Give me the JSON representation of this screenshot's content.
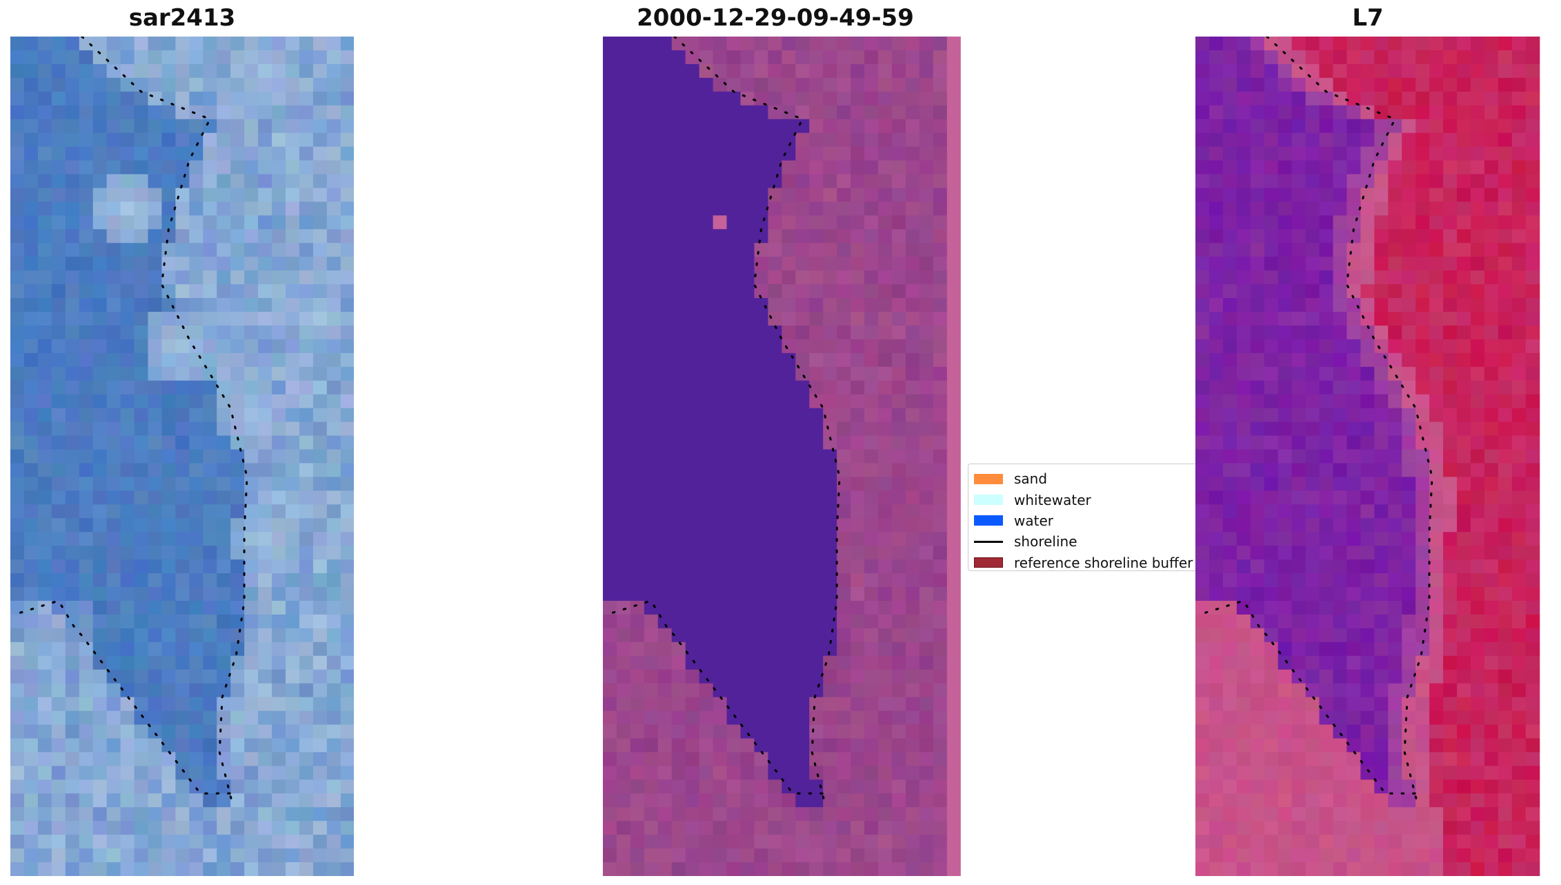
{
  "panels": [
    {
      "title": "sar2413",
      "kind": "rgb"
    },
    {
      "title": "2000-12-29-09-49-59",
      "kind": "classified"
    },
    {
      "title": "L7",
      "kind": "index"
    }
  ],
  "legend": {
    "items": [
      {
        "label": "sand",
        "type": "patch",
        "color": "#ff8c3c",
        "border": "#ff8c3c"
      },
      {
        "label": "whitewater",
        "type": "patch",
        "color": "#ccffff",
        "border": "#ccffff"
      },
      {
        "label": "water",
        "type": "patch",
        "color": "#0a5aff",
        "border": "#0a5aff"
      },
      {
        "label": "shoreline",
        "type": "line",
        "color": "#000000"
      },
      {
        "label": "reference shoreline buffer",
        "type": "patch",
        "color": "#a02a35",
        "border": "#6a1018"
      }
    ]
  },
  "colors": {
    "rgb_water": "#3f72bd",
    "rgb_foam": "#a9c3e0",
    "classified_water": "#52229a",
    "classified_land": "#8c3c88",
    "classified_edge_strip": "#c46299",
    "index_water": "#6a12a8",
    "index_land": "#c8104a",
    "index_edge": "#c8639a"
  }
}
